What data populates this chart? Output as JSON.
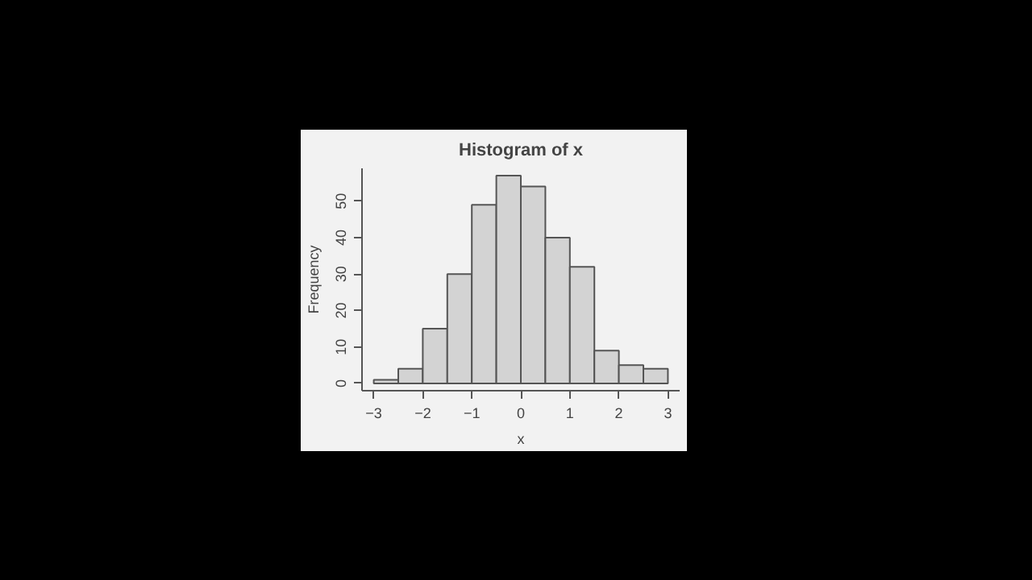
{
  "chart_data": {
    "type": "histogram",
    "title": "Histogram of x",
    "xlabel": "x",
    "ylabel": "Frequency",
    "bins": [
      -3,
      -2.5,
      -2,
      -1.5,
      -1,
      -0.5,
      0,
      0.5,
      1,
      1.5,
      2,
      2.5,
      3
    ],
    "values": [
      1,
      4,
      15,
      30,
      49,
      57,
      54,
      40,
      32,
      9,
      5,
      4
    ],
    "color": "#d3d3d3",
    "xlim": [
      -3.24,
      3.24
    ],
    "ylim": [
      -2,
      59
    ],
    "xticks": [
      -3,
      -2,
      -1,
      0,
      1,
      2,
      3
    ],
    "yticks": [
      0,
      10,
      20,
      30,
      40,
      50
    ],
    "grid": false
  }
}
